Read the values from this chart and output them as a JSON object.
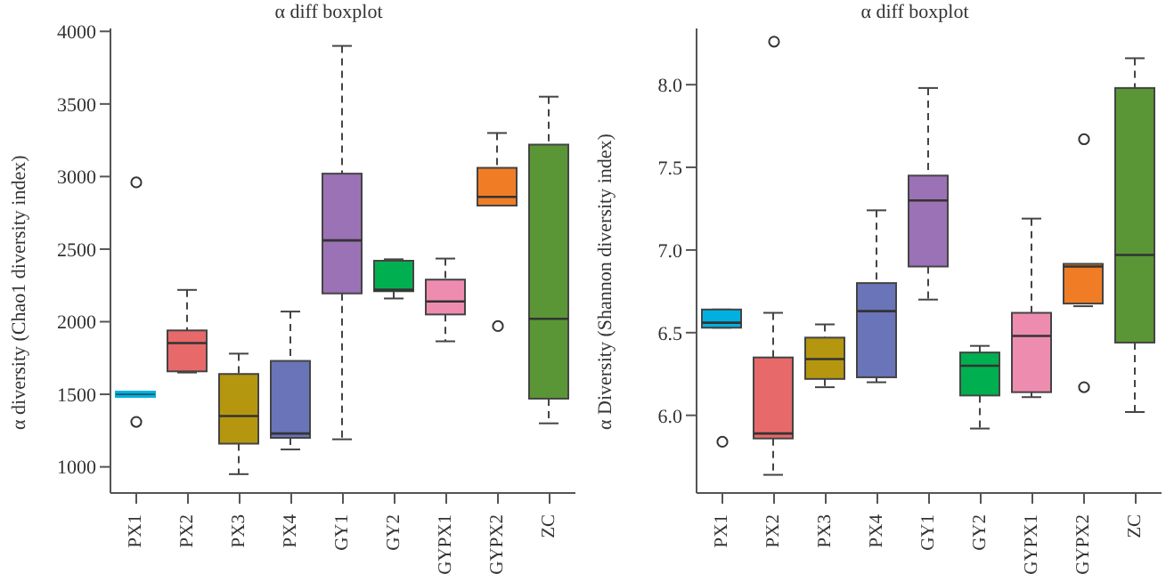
{
  "chart_data": [
    {
      "type": "box",
      "title": "α diff boxplot",
      "ylabel": "α diversity (Chao1 diversity index)",
      "categories": [
        "PX1",
        "PX2",
        "PX3",
        "PX4",
        "GY1",
        "GY2",
        "GYPX1",
        "GYPX2",
        "ZC"
      ],
      "colors": [
        "#00b0e0",
        "#e8696a",
        "#b5960f",
        "#6a74b8",
        "#9b72b5",
        "#00b050",
        "#ee8cb0",
        "#f07d25",
        "#5a9636"
      ],
      "boxes": [
        {
          "low": 1500,
          "q1": 1500,
          "median": 1500,
          "q3": 1500,
          "high": 1500,
          "outliers": [
            2960,
            1310
          ]
        },
        {
          "low": 1650,
          "q1": 1658,
          "median": 1853,
          "q3": 1940,
          "high": 2219
        },
        {
          "low": 950,
          "q1": 1160,
          "median": 1350,
          "q3": 1640,
          "high": 1780
        },
        {
          "low": 1120,
          "q1": 1200,
          "median": 1230,
          "q3": 1730,
          "high": 2070
        },
        {
          "low": 1190,
          "q1": 2195,
          "median": 2560,
          "q3": 3020,
          "high": 3900
        },
        {
          "low": 2160,
          "q1": 2210,
          "median": 2220,
          "q3": 2420,
          "high": 2430
        },
        {
          "low": 1865,
          "q1": 2050,
          "median": 2140,
          "q3": 2290,
          "high": 2435
        },
        {
          "low": 2800,
          "q1": 2800,
          "median": 2860,
          "q3": 3060,
          "high": 3300,
          "outliers": [
            1970
          ]
        },
        {
          "low": 1300,
          "q1": 1470,
          "median": 2020,
          "q3": 3220,
          "high": 3550
        }
      ],
      "ylim": [
        820,
        4020
      ],
      "yticks": [
        1000,
        1500,
        2000,
        2500,
        3000,
        3500,
        4000
      ],
      "grid": false
    },
    {
      "type": "box",
      "title": "α diff boxplot",
      "ylabel": "α Diversity (Shannon diversity index)",
      "categories": [
        "PX1",
        "PX2",
        "PX3",
        "PX4",
        "GY1",
        "GY2",
        "GYPX1",
        "GYPX2",
        "ZC"
      ],
      "colors": [
        "#00b0e0",
        "#e8696a",
        "#b5960f",
        "#6a74b8",
        "#9b72b5",
        "#00b050",
        "#ee8cb0",
        "#f07d25",
        "#5a9636"
      ],
      "boxes": [
        {
          "low": 6.53,
          "q1": 6.53,
          "median": 6.56,
          "q3": 6.64,
          "high": 6.64,
          "outliers": [
            5.84
          ]
        },
        {
          "low": 5.64,
          "q1": 5.86,
          "median": 5.89,
          "q3": 6.35,
          "high": 6.62,
          "outliers": [
            8.26
          ]
        },
        {
          "low": 6.17,
          "q1": 6.22,
          "median": 6.34,
          "q3": 6.47,
          "high": 6.55
        },
        {
          "low": 6.2,
          "q1": 6.23,
          "median": 6.63,
          "q3": 6.8,
          "high": 7.24
        },
        {
          "low": 6.7,
          "q1": 6.9,
          "median": 7.3,
          "q3": 7.45,
          "high": 7.98
        },
        {
          "low": 5.92,
          "q1": 6.12,
          "median": 6.3,
          "q3": 6.38,
          "high": 6.42
        },
        {
          "low": 6.11,
          "q1": 6.14,
          "median": 6.48,
          "q3": 6.62,
          "high": 7.19
        },
        {
          "low": 6.66,
          "q1": 6.66,
          "median": 6.9,
          "q3": 6.9,
          "high": 6.9,
          "outliers": [
            7.67,
            6.17
          ]
        },
        {
          "low": 6.02,
          "q1": 6.44,
          "median": 6.97,
          "q3": 7.98,
          "high": 8.16
        }
      ],
      "ylim": [
        5.53,
        8.34
      ],
      "yticks": [
        {
          "value": 6,
          "label": "6.0"
        },
        {
          "value": 6.5,
          "label": "6.5"
        },
        {
          "value": 7,
          "label": "7.0"
        },
        {
          "value": 7.5,
          "label": "7.5"
        },
        {
          "value": 8,
          "label": "8.0"
        }
      ],
      "grid": false
    }
  ]
}
